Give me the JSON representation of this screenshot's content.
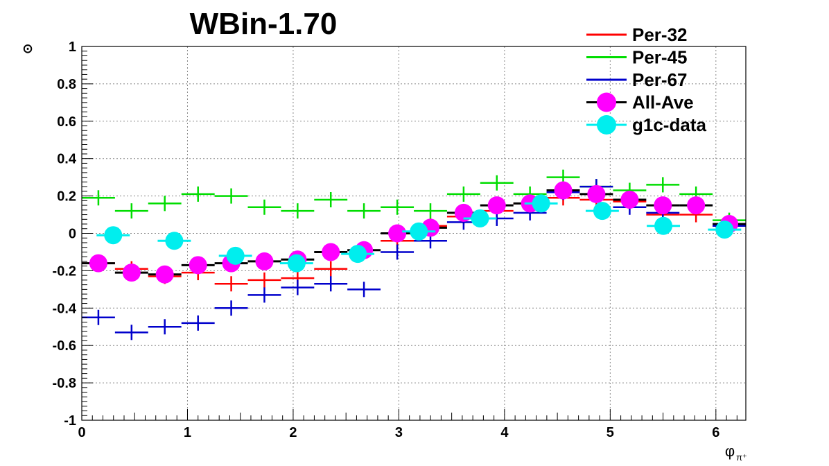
{
  "chart_data": {
    "type": "scatter",
    "title": "WBin-1.70",
    "xlabel": "φ",
    "xlabel_sub": "π⁺",
    "ylabel": "⊙",
    "xlim": [
      0,
      6.2832
    ],
    "ylim": [
      -1,
      1
    ],
    "grid": true,
    "legend_position": "top-right",
    "x_ticks": [
      0,
      1,
      2,
      3,
      4,
      5,
      6
    ],
    "x_tick_labels": [
      "0",
      "1",
      "2",
      "3",
      "4",
      "5",
      "6"
    ],
    "y_ticks": [
      -1,
      -0.8,
      -0.6,
      -0.4,
      -0.2,
      0,
      0.2,
      0.4,
      0.6,
      0.8,
      1
    ],
    "y_tick_labels": [
      "-1",
      "-0.8",
      "-0.6",
      "-0.4",
      "-0.2",
      "0",
      "0.2",
      "0.4",
      "0.6",
      "0.8",
      "1"
    ],
    "series": [
      {
        "name": "Per-32",
        "style": "cross",
        "color": "#ff0000",
        "x": [
          0.157,
          0.471,
          0.785,
          1.1,
          1.414,
          1.728,
          2.042,
          2.356,
          2.985,
          3.299,
          3.613,
          3.927,
          4.241,
          4.555,
          4.869,
          5.184,
          5.498,
          5.812,
          6.126
        ],
        "y": [
          -0.16,
          -0.19,
          -0.23,
          -0.21,
          -0.27,
          -0.25,
          -0.24,
          -0.19,
          -0.04,
          0.04,
          0.09,
          0.12,
          0.16,
          0.19,
          0.18,
          0.17,
          0.1,
          0.1,
          0.04
        ]
      },
      {
        "name": "Per-45",
        "style": "cross",
        "color": "#00dd00",
        "x": [
          0.157,
          0.471,
          0.785,
          1.1,
          1.414,
          1.728,
          2.042,
          2.356,
          2.67,
          2.985,
          3.299,
          3.613,
          3.927,
          4.241,
          4.555,
          4.869,
          5.184,
          5.498,
          5.812,
          6.126
        ],
        "y": [
          0.19,
          0.12,
          0.16,
          0.21,
          0.2,
          0.14,
          0.12,
          0.18,
          0.12,
          0.14,
          0.12,
          0.21,
          0.27,
          0.21,
          0.3,
          0.25,
          0.23,
          0.26,
          0.21,
          0.07
        ]
      },
      {
        "name": "Per-67",
        "style": "cross",
        "color": "#0000cc",
        "x": [
          0.157,
          0.471,
          0.785,
          1.1,
          1.414,
          1.728,
          2.042,
          2.356,
          2.67,
          2.985,
          3.299,
          3.613,
          3.927,
          4.241,
          4.555,
          4.869,
          5.184,
          5.498,
          5.812,
          6.126
        ],
        "y": [
          -0.45,
          -0.53,
          -0.5,
          -0.48,
          -0.4,
          -0.33,
          -0.29,
          -0.27,
          -0.3,
          -0.1,
          -0.04,
          0.06,
          0.08,
          0.11,
          0.22,
          0.25,
          0.14,
          0.11,
          0.15,
          0.04
        ]
      },
      {
        "name": "All-Ave",
        "style": "circle",
        "color": "#ff00ff",
        "bar_color": "#000000",
        "x": [
          0.157,
          0.471,
          0.785,
          1.1,
          1.414,
          1.728,
          2.042,
          2.356,
          2.67,
          2.985,
          3.299,
          3.613,
          3.927,
          4.241,
          4.555,
          4.869,
          5.184,
          5.498,
          5.812,
          6.126
        ],
        "y": [
          -0.16,
          -0.21,
          -0.22,
          -0.17,
          -0.16,
          -0.15,
          -0.14,
          -0.1,
          -0.09,
          0.0,
          0.03,
          0.11,
          0.15,
          0.16,
          0.23,
          0.21,
          0.18,
          0.15,
          0.15,
          0.05
        ]
      },
      {
        "name": "g1c-data",
        "style": "circle",
        "color": "#00eeee",
        "x": [
          0.297,
          0.875,
          1.454,
          2.032,
          2.611,
          3.189,
          3.768,
          4.346,
          4.925,
          5.503,
          6.082
        ],
        "y": [
          -0.01,
          -0.04,
          -0.12,
          -0.16,
          -0.11,
          0.01,
          0.08,
          0.16,
          0.12,
          0.04,
          0.02
        ]
      }
    ]
  }
}
